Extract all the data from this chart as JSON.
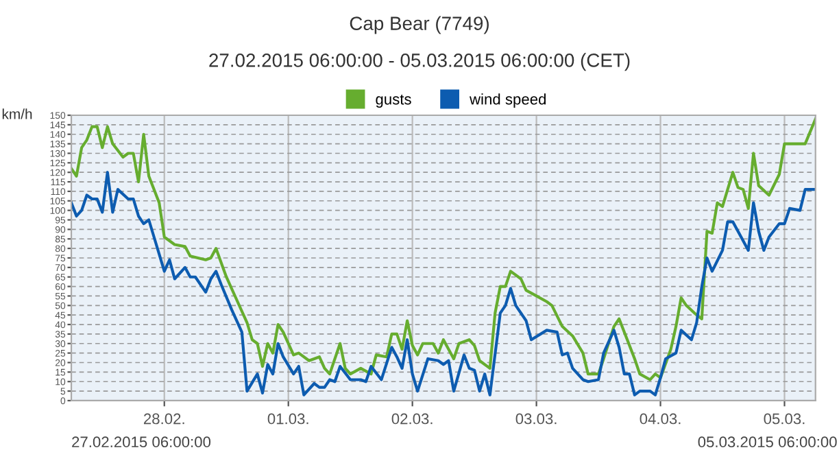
{
  "chart_data": {
    "type": "line",
    "title": "Cap Bear (7749)",
    "subtitle": "27.02.2015 06:00:00 - 05.03.2015 06:00:00 (CET)",
    "ylabel": "km/h",
    "annotations": [
      "27.02.2015 06:00:00",
      "05.03.2015 06:00:00"
    ],
    "series": [
      {
        "name": "gusts",
        "color": "#66ad2f",
        "x": [
          "2015-02-27T06:00",
          "2015-02-27T07:00",
          "2015-02-27T08:00",
          "2015-02-27T09:00",
          "2015-02-27T10:00",
          "2015-02-27T11:00",
          "2015-02-27T12:00",
          "2015-02-27T13:00",
          "2015-02-27T14:00",
          "2015-02-27T16:00",
          "2015-02-27T17:00",
          "2015-02-27T18:00",
          "2015-02-27T19:00",
          "2015-02-27T20:00",
          "2015-02-27T21:00",
          "2015-02-27T23:00",
          "2015-02-28T00:00",
          "2015-02-28T02:00",
          "2015-02-28T04:00",
          "2015-02-28T05:00",
          "2015-02-28T08:00",
          "2015-02-28T09:00",
          "2015-02-28T10:00",
          "2015-02-28T12:00",
          "2015-02-28T14:00",
          "2015-02-28T16:00",
          "2015-02-28T17:00",
          "2015-02-28T18:00",
          "2015-02-28T19:00",
          "2015-02-28T20:00",
          "2015-02-28T21:00",
          "2015-02-28T22:00",
          "2015-02-28T23:00",
          "2015-03-01T01:00",
          "2015-03-01T02:00",
          "2015-03-01T04:00",
          "2015-03-01T06:00",
          "2015-03-01T07:00",
          "2015-03-01T08:00",
          "2015-03-01T10:00",
          "2015-03-01T11:00",
          "2015-03-01T12:00",
          "2015-03-01T14:00",
          "2015-03-01T16:00",
          "2015-03-01T17:00",
          "2015-03-01T19:00",
          "2015-03-01T20:00",
          "2015-03-01T21:00",
          "2015-03-01T22:00",
          "2015-03-01T23:00",
          "2015-03-02T00:00",
          "2015-03-02T01:00",
          "2015-03-02T02:00",
          "2015-03-02T04:00",
          "2015-03-02T05:00",
          "2015-03-02T06:00",
          "2015-03-02T08:00",
          "2015-03-02T09:00",
          "2015-03-02T11:00",
          "2015-03-02T12:00",
          "2015-03-02T13:00",
          "2015-03-02T15:00",
          "2015-03-02T16:00",
          "2015-03-02T17:00",
          "2015-03-02T18:00",
          "2015-03-02T19:00",
          "2015-03-02T21:00",
          "2015-03-02T22:00",
          "2015-03-03T00:00",
          "2015-03-03T02:00",
          "2015-03-03T03:00",
          "2015-03-03T05:00",
          "2015-03-03T07:00",
          "2015-03-03T09:00",
          "2015-03-03T10:00",
          "2015-03-03T12:00",
          "2015-03-03T13:00",
          "2015-03-03T15:00",
          "2015-03-03T16:00",
          "2015-03-03T18:00",
          "2015-03-03T19:00",
          "2015-03-03T20:00",
          "2015-03-03T22:00",
          "2015-03-03T23:00",
          "2015-03-04T00:00",
          "2015-03-04T02:00",
          "2015-03-04T03:00",
          "2015-03-04T04:00",
          "2015-03-04T05:00",
          "2015-03-04T07:00",
          "2015-03-04T08:00",
          "2015-03-04T09:00",
          "2015-03-04T10:00",
          "2015-03-04T11:00",
          "2015-03-04T12:00",
          "2015-03-04T13:00",
          "2015-03-04T14:00",
          "2015-03-04T15:00",
          "2015-03-04T16:00",
          "2015-03-04T17:00",
          "2015-03-04T18:00",
          "2015-03-04T19:00",
          "2015-03-04T21:00",
          "2015-03-04T23:00",
          "2015-03-05T00:00",
          "2015-03-05T04:00",
          "2015-03-05T06:00"
        ],
        "values": [
          122,
          118,
          133,
          137,
          144,
          144,
          133,
          144,
          135,
          128,
          130,
          130,
          115,
          140,
          118,
          104,
          86,
          82,
          81,
          76,
          74,
          75,
          80,
          65,
          53,
          41,
          32,
          30,
          18,
          30,
          25,
          40,
          36,
          24,
          25,
          21,
          23,
          17,
          14,
          30,
          17,
          14,
          17,
          14,
          24,
          23,
          35,
          35,
          27,
          42,
          29,
          24,
          30,
          30,
          25,
          32,
          22,
          30,
          32,
          29,
          21,
          17,
          46,
          60,
          60,
          68,
          64,
          58,
          55,
          52,
          50,
          39,
          34,
          25,
          14,
          14,
          22,
          39,
          43,
          29,
          22,
          14,
          11,
          14,
          12,
          27,
          39,
          54,
          50,
          45,
          43,
          89,
          88,
          104,
          102,
          111,
          120,
          112,
          111,
          101,
          130,
          113,
          108,
          119,
          135,
          135,
          148
        ]
      },
      {
        "name": "wind speed",
        "color": "#0d5cb0",
        "x": [
          "2015-02-27T06:00",
          "2015-02-27T07:00",
          "2015-02-27T08:00",
          "2015-02-27T09:00",
          "2015-02-27T10:00",
          "2015-02-27T11:00",
          "2015-02-27T12:00",
          "2015-02-27T13:00",
          "2015-02-27T14:00",
          "2015-02-27T15:00",
          "2015-02-27T17:00",
          "2015-02-27T18:00",
          "2015-02-27T19:00",
          "2015-02-27T20:00",
          "2015-02-27T21:00",
          "2015-02-27T22:00",
          "2015-02-27T23:00",
          "2015-02-28T00:00",
          "2015-02-28T01:00",
          "2015-02-28T02:00",
          "2015-02-28T04:00",
          "2015-02-28T05:00",
          "2015-02-28T06:00",
          "2015-02-28T08:00",
          "2015-02-28T09:00",
          "2015-02-28T10:00",
          "2015-02-28T11:00",
          "2015-02-28T13:00",
          "2015-02-28T15:00",
          "2015-02-28T16:00",
          "2015-02-28T18:00",
          "2015-02-28T19:00",
          "2015-02-28T20:00",
          "2015-02-28T21:00",
          "2015-02-28T22:00",
          "2015-02-28T23:00",
          "2015-03-01T01:00",
          "2015-03-01T02:00",
          "2015-03-01T03:00",
          "2015-03-01T05:00",
          "2015-03-01T06:00",
          "2015-03-01T07:00",
          "2015-03-01T08:00",
          "2015-03-01T09:00",
          "2015-03-01T10:00",
          "2015-03-01T12:00",
          "2015-03-01T14:00",
          "2015-03-01T15:00",
          "2015-03-01T16:00",
          "2015-03-01T18:00",
          "2015-03-01T20:00",
          "2015-03-01T21:00",
          "2015-03-01T22:00",
          "2015-03-01T23:00",
          "2015-03-02T00:00",
          "2015-03-02T01:00",
          "2015-03-02T03:00",
          "2015-03-02T05:00",
          "2015-03-02T06:00",
          "2015-03-02T07:00",
          "2015-03-02T08:00",
          "2015-03-02T10:00",
          "2015-03-02T11:00",
          "2015-03-02T12:00",
          "2015-03-02T13:00",
          "2015-03-02T14:00",
          "2015-03-02T15:00",
          "2015-03-02T17:00",
          "2015-03-02T18:00",
          "2015-03-02T19:00",
          "2015-03-02T20:00",
          "2015-03-02T22:00",
          "2015-03-02T23:00",
          "2015-03-03T02:00",
          "2015-03-03T04:00",
          "2015-03-03T05:00",
          "2015-03-03T06:00",
          "2015-03-03T07:00",
          "2015-03-03T09:00",
          "2015-03-03T10:00",
          "2015-03-03T12:00",
          "2015-03-03T13:00",
          "2015-03-03T15:00",
          "2015-03-03T16:00",
          "2015-03-03T17:00",
          "2015-03-03T18:00",
          "2015-03-03T19:00",
          "2015-03-03T20:00",
          "2015-03-03T22:00",
          "2015-03-03T23:00",
          "2015-03-04T00:00",
          "2015-03-04T01:00",
          "2015-03-04T03:00",
          "2015-03-04T04:00",
          "2015-03-04T06:00",
          "2015-03-04T07:00",
          "2015-03-04T08:00",
          "2015-03-04T09:00",
          "2015-03-04T10:00",
          "2015-03-04T12:00",
          "2015-03-04T13:00",
          "2015-03-04T14:00",
          "2015-03-04T16:00",
          "2015-03-04T17:00",
          "2015-03-04T18:00",
          "2015-03-04T19:00",
          "2015-03-04T20:00",
          "2015-03-04T21:00",
          "2015-03-04T23:00",
          "2015-03-05T00:00",
          "2015-03-05T01:00",
          "2015-03-05T03:00",
          "2015-03-05T04:00",
          "2015-03-05T06:00"
        ],
        "values": [
          104,
          97,
          100,
          108,
          106,
          106,
          99,
          120,
          99,
          111,
          106,
          106,
          97,
          93,
          95,
          86,
          77,
          68,
          74,
          64,
          70,
          65,
          65,
          57,
          64,
          68,
          61,
          48,
          36,
          5,
          14,
          4,
          19,
          14,
          30,
          23,
          14,
          18,
          3,
          9,
          7,
          7,
          11,
          10,
          18,
          11,
          11,
          10,
          18,
          11,
          28,
          23,
          17,
          32,
          14,
          5,
          22,
          21,
          19,
          21,
          5,
          24,
          17,
          16,
          5,
          14,
          3,
          46,
          50,
          59,
          50,
          42,
          32,
          37,
          36,
          24,
          25,
          17,
          11,
          10,
          11,
          25,
          37,
          28,
          14,
          14,
          3,
          5,
          5,
          3,
          12,
          22,
          25,
          37,
          32,
          41,
          60,
          75,
          68,
          79,
          94,
          94,
          84,
          79,
          104,
          89,
          79,
          86,
          93,
          93,
          101,
          100,
          111,
          111
        ]
      }
    ],
    "xlim": [
      "2015-02-27T06:00",
      "2015-03-05T06:00"
    ],
    "xticks": [
      {
        "value": "2015-02-28T00:00",
        "label": "28.02."
      },
      {
        "value": "2015-03-01T00:00",
        "label": "01.03."
      },
      {
        "value": "2015-03-02T00:00",
        "label": "02.03."
      },
      {
        "value": "2015-03-03T00:00",
        "label": "03.03."
      },
      {
        "value": "2015-03-04T00:00",
        "label": "04.03."
      },
      {
        "value": "2015-03-05T00:00",
        "label": "05.03."
      }
    ],
    "ylim": [
      0,
      150
    ],
    "yticks": [
      0,
      5,
      10,
      15,
      20,
      25,
      30,
      35,
      40,
      45,
      50,
      55,
      60,
      65,
      70,
      75,
      80,
      85,
      90,
      95,
      100,
      105,
      110,
      115,
      120,
      125,
      130,
      135,
      140,
      145,
      150
    ],
    "grid": true,
    "legend": "top",
    "marker": "none",
    "line_style": "solid"
  }
}
